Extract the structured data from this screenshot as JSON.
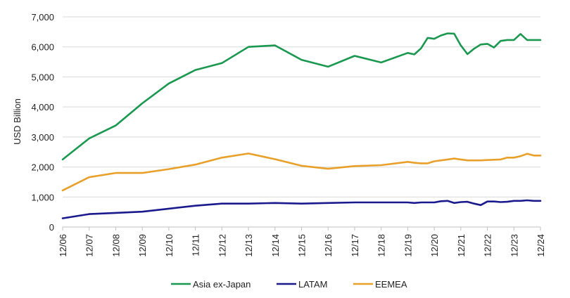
{
  "chart_data": {
    "type": "line",
    "title": "",
    "xlabel": "",
    "ylabel": "USD Billion",
    "ylim": [
      0,
      7000
    ],
    "yticks": [
      0,
      1000,
      2000,
      3000,
      4000,
      5000,
      6000,
      7000
    ],
    "ytick_labels": [
      "0",
      "1,000",
      "2,000",
      "3,000",
      "4,000",
      "5,000",
      "6,000",
      "7,000"
    ],
    "xlim": [
      2006,
      2024
    ],
    "xticks": [
      2006,
      2007,
      2008,
      2009,
      2010,
      2011,
      2012,
      2013,
      2014,
      2015,
      2016,
      2017,
      2018,
      2019,
      2020,
      2021,
      2022,
      2023,
      2024
    ],
    "xtick_labels": [
      "12/06",
      "12/07",
      "12/08",
      "12/09",
      "12/10",
      "12/11",
      "12/12",
      "12/13",
      "12/14",
      "12/15",
      "12/16",
      "12/17",
      "12/18",
      "12/19",
      "12/20",
      "12/21",
      "12/22",
      "12/23",
      "12/24"
    ],
    "grid": true,
    "legend_position": "bottom",
    "series": [
      {
        "name": "Asia ex-Japan",
        "color": "#1a9850",
        "x": [
          2006,
          2007,
          2008,
          2009,
          2010,
          2011,
          2012,
          2013,
          2014,
          2015,
          2016,
          2017,
          2018,
          2019,
          2019.25,
          2019.5,
          2019.75,
          2020,
          2020.25,
          2020.5,
          2020.75,
          2021,
          2021.25,
          2021.5,
          2021.75,
          2022,
          2022.25,
          2022.5,
          2022.75,
          2023,
          2023.25,
          2023.5,
          2023.75,
          2024
        ],
        "values": [
          2250,
          2950,
          3380,
          4120,
          4780,
          5230,
          5460,
          6000,
          6050,
          5570,
          5340,
          5700,
          5480,
          5800,
          5750,
          5950,
          6300,
          6270,
          6380,
          6450,
          6440,
          6050,
          5760,
          5940,
          6080,
          6100,
          5980,
          6200,
          6230,
          6230,
          6430,
          6230,
          6230,
          6230
        ]
      },
      {
        "name": "LATAM",
        "color": "#1a1a8c",
        "x": [
          2006,
          2007,
          2008,
          2009,
          2010,
          2011,
          2012,
          2013,
          2014,
          2015,
          2016,
          2017,
          2018,
          2019,
          2019.25,
          2019.5,
          2019.75,
          2020,
          2020.25,
          2020.5,
          2020.75,
          2021,
          2021.25,
          2021.5,
          2021.75,
          2022,
          2022.25,
          2022.5,
          2022.75,
          2023,
          2023.25,
          2023.5,
          2023.75,
          2024
        ],
        "values": [
          290,
          430,
          470,
          510,
          610,
          710,
          780,
          780,
          800,
          780,
          800,
          820,
          820,
          820,
          800,
          820,
          820,
          820,
          860,
          870,
          800,
          830,
          840,
          780,
          730,
          850,
          850,
          830,
          840,
          870,
          870,
          890,
          870,
          870
        ]
      },
      {
        "name": "EEMEA",
        "color": "#e8a02a",
        "x": [
          2006,
          2007,
          2008,
          2009,
          2010,
          2011,
          2012,
          2013,
          2014,
          2015,
          2016,
          2017,
          2018,
          2019,
          2019.25,
          2019.5,
          2019.75,
          2020,
          2020.25,
          2020.5,
          2020.75,
          2021,
          2021.25,
          2021.5,
          2021.75,
          2022,
          2022.25,
          2022.5,
          2022.75,
          2023,
          2023.25,
          2023.5,
          2023.75,
          2024
        ],
        "values": [
          1220,
          1660,
          1800,
          1800,
          1930,
          2080,
          2310,
          2450,
          2260,
          2040,
          1940,
          2030,
          2060,
          2170,
          2140,
          2120,
          2120,
          2190,
          2220,
          2250,
          2280,
          2250,
          2220,
          2220,
          2220,
          2230,
          2240,
          2250,
          2310,
          2310,
          2360,
          2440,
          2380,
          2380
        ]
      }
    ]
  }
}
